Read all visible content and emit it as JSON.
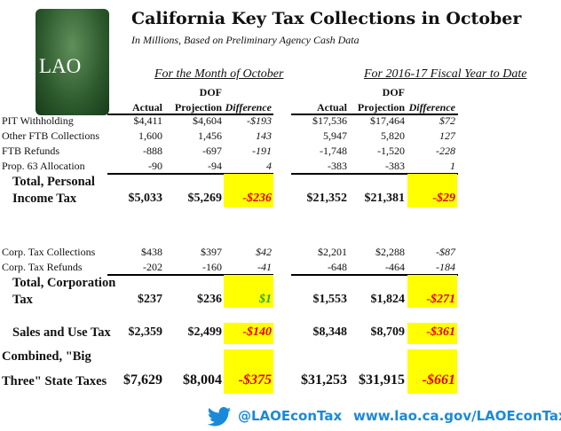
{
  "logo_text": "LAO",
  "title": "California Key Tax Collections in October",
  "subtitle": "In Millions, Based on Preliminary Agency Cash Data",
  "sections": {
    "month": "For the Month of October",
    "ytd": "For 2016-17 Fiscal Year to Date"
  },
  "headers": {
    "dof": "DOF",
    "actual": "Actual",
    "projection": "Projection",
    "difference": "Difference"
  },
  "rows": [
    {
      "label": "PIT Withholding",
      "m": [
        "$4,411",
        "$4,604",
        "-$193"
      ],
      "y": [
        "$17,536",
        "$17,464",
        "$72"
      ]
    },
    {
      "label": "Other FTB Collections",
      "m": [
        "1,600",
        "1,456",
        "143"
      ],
      "y": [
        "5,947",
        "5,820",
        "127"
      ]
    },
    {
      "label": "FTB Refunds",
      "m": [
        "-888",
        "-697",
        "-191"
      ],
      "y": [
        "-1,748",
        "-1,520",
        "-228"
      ]
    },
    {
      "label": "Prop. 63 Allocation",
      "m": [
        "-90",
        "-94",
        "4"
      ],
      "y": [
        "-383",
        "-383",
        "1"
      ]
    },
    {
      "label": "Total, Personal Income Tax",
      "label1": "Total, Personal",
      "label2": "Income Tax",
      "m": [
        "$5,033",
        "$5,269",
        "-$236"
      ],
      "y": [
        "$21,352",
        "$21,381",
        "-$29"
      ],
      "mcolor": "red",
      "ycolor": "red"
    },
    {
      "label": "Corp. Tax Collections",
      "m": [
        "$438",
        "$397",
        "$42"
      ],
      "y": [
        "$2,201",
        "$2,288",
        "-$87"
      ]
    },
    {
      "label": "Corp. Tax Refunds",
      "m": [
        "-202",
        "-160",
        "-41"
      ],
      "y": [
        "-648",
        "-464",
        "-184"
      ]
    },
    {
      "label": "Total, Corporation Tax",
      "label1": "Total, Corporation",
      "label2": "Tax",
      "m": [
        "$237",
        "$236",
        "$1"
      ],
      "y": [
        "$1,553",
        "$1,824",
        "-$271"
      ],
      "mcolor": "green",
      "ycolor": "red"
    },
    {
      "label": "Sales and Use Tax",
      "m": [
        "$2,359",
        "$2,499",
        "-$140"
      ],
      "y": [
        "$8,348",
        "$8,709",
        "-$361"
      ],
      "mcolor": "red",
      "ycolor": "red"
    },
    {
      "label": "Combined, \"Big Three\" State Taxes",
      "label1": "Combined, \"Big",
      "label2": "Three\" State Taxes",
      "m": [
        "$7,629",
        "$8,004",
        "-$375"
      ],
      "y": [
        "$31,253",
        "$31,915",
        "-$661"
      ],
      "mcolor": "red",
      "ycolor": "red"
    }
  ],
  "colors": {
    "highlight": "#ffff00",
    "negative": "#e00000",
    "positive": "#2ea82e",
    "link": "#1a8ad8"
  },
  "footer": {
    "twitter_icon": "twitter-bird-icon",
    "handle": "@LAOEconTax",
    "url": "www.lao.ca.gov/LAOEconTax"
  }
}
